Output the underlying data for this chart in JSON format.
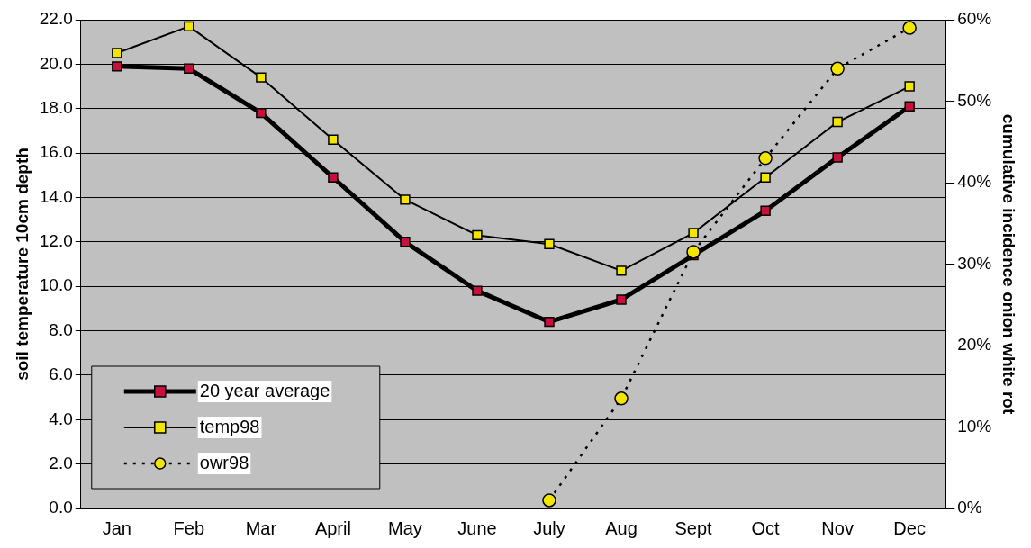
{
  "chart_data": {
    "type": "line",
    "xlabel": null,
    "ylabel": "soil temperature 10cm depth",
    "y2label": "cumulative incidence onion white rot",
    "categories": [
      "Jan",
      "Feb",
      "Mar",
      "April",
      "May",
      "June",
      "July",
      "Aug",
      "Sept",
      "Oct",
      "Nov",
      "Dec"
    ],
    "series": [
      {
        "name": "20 year average",
        "color": "#c8103c",
        "marker": "square",
        "line_style": "solid",
        "values": [
          19.9,
          19.8,
          17.8,
          14.9,
          12.0,
          9.8,
          8.4,
          9.4,
          11.4,
          13.4,
          15.8,
          18.1
        ]
      },
      {
        "name": "temp98",
        "color": "#f2e600",
        "marker": "square",
        "line_style": "solid",
        "values": [
          20.5,
          21.7,
          19.4,
          16.6,
          13.9,
          12.3,
          11.9,
          10.7,
          12.4,
          14.9,
          17.4,
          19.0
        ]
      },
      {
        "name": "owr98",
        "color": "#f2e600",
        "marker": "circle",
        "line_style": "dotted",
        "axis": "y2",
        "values": [
          null,
          null,
          null,
          null,
          null,
          null,
          1,
          13.5,
          31.5,
          43,
          54,
          59
        ]
      }
    ],
    "ylim": [
      0,
      22
    ],
    "yticks": [
      {
        "value": 0,
        "label": "0.0"
      },
      {
        "value": 2,
        "label": "2.0"
      },
      {
        "value": 4,
        "label": "4.0"
      },
      {
        "value": 6,
        "label": "6.0"
      },
      {
        "value": 8,
        "label": "8.0"
      },
      {
        "value": 10,
        "label": "10.0"
      },
      {
        "value": 12,
        "label": "12.0"
      },
      {
        "value": 14,
        "label": "14.0"
      },
      {
        "value": 16,
        "label": "16.0"
      },
      {
        "value": 18,
        "label": "18.0"
      },
      {
        "value": 20,
        "label": "20.0"
      },
      {
        "value": 22,
        "label": "22.0"
      }
    ],
    "y2lim": [
      0,
      60
    ],
    "y2ticks": [
      {
        "value": 0,
        "label": "0%"
      },
      {
        "value": 10,
        "label": "10%"
      },
      {
        "value": 20,
        "label": "20%"
      },
      {
        "value": 30,
        "label": "30%"
      },
      {
        "value": 40,
        "label": "40%"
      },
      {
        "value": 50,
        "label": "50%"
      },
      {
        "value": 60,
        "label": "60%"
      }
    ],
    "grid": "y",
    "legend": "bottom left"
  }
}
